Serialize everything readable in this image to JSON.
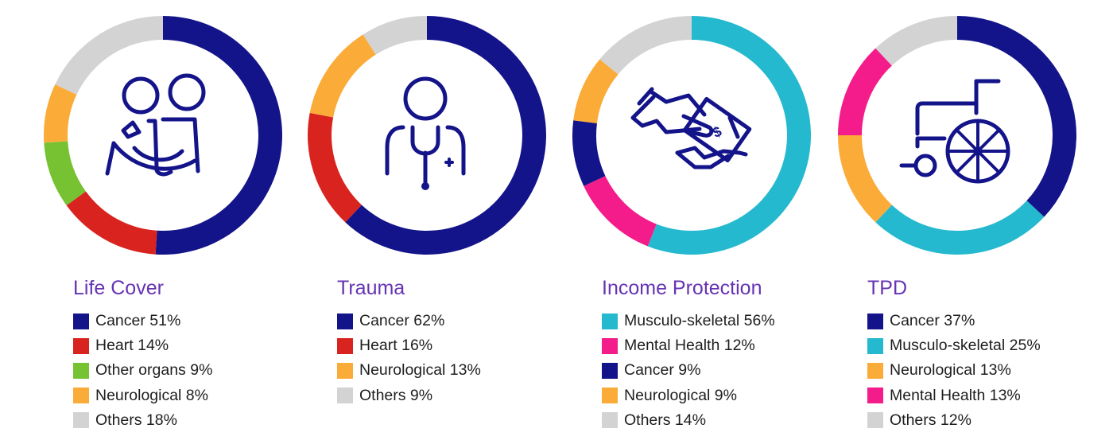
{
  "colors": {
    "navy": "#14148a",
    "red": "#d9231f",
    "green": "#76c232",
    "orange": "#fbab38",
    "gray": "#d3d3d3",
    "cyan": "#25b9cf",
    "magenta": "#f41c8a",
    "title": "#6633b3"
  },
  "panels": [
    {
      "title": "Life Cover",
      "icon": "two-people-hug-icon",
      "items": [
        {
          "label": "Cancer 51%",
          "name": "Cancer",
          "value": 51,
          "color": "#14148a"
        },
        {
          "label": "Heart 14%",
          "name": "Heart",
          "value": 14,
          "color": "#d9231f"
        },
        {
          "label": "Other organs 9%",
          "name": "Other organs",
          "value": 9,
          "color": "#76c232"
        },
        {
          "label": "Neurological 8%",
          "name": "Neurological",
          "value": 8,
          "color": "#fbab38"
        },
        {
          "label": "Others 18%",
          "name": "Others",
          "value": 18,
          "color": "#d3d3d3"
        }
      ]
    },
    {
      "title": "Trauma",
      "icon": "doctor-stethoscope-icon",
      "items": [
        {
          "label": "Cancer 62%",
          "name": "Cancer",
          "value": 62,
          "color": "#14148a"
        },
        {
          "label": "Heart 16%",
          "name": "Heart",
          "value": 16,
          "color": "#d9231f"
        },
        {
          "label": "Neurological 13%",
          "name": "Neurological",
          "value": 13,
          "color": "#fbab38"
        },
        {
          "label": "Others 9%",
          "name": "Others",
          "value": 9,
          "color": "#d3d3d3"
        }
      ]
    },
    {
      "title": "Income Protection",
      "icon": "hand-giving-money-icon",
      "items": [
        {
          "label": "Musculo-skeletal 56%",
          "name": "Musculo-skeletal",
          "value": 56,
          "color": "#25b9cf"
        },
        {
          "label": "Mental Health 12%",
          "name": "Mental Health",
          "value": 12,
          "color": "#f41c8a"
        },
        {
          "label": "Cancer 9%",
          "name": "Cancer",
          "value": 9,
          "color": "#14148a"
        },
        {
          "label": "Neurological 9%",
          "name": "Neurological",
          "value": 9,
          "color": "#fbab38"
        },
        {
          "label": "Others 14%",
          "name": "Others",
          "value": 14,
          "color": "#d3d3d3"
        }
      ]
    },
    {
      "title": "TPD",
      "icon": "wheelchair-icon",
      "items": [
        {
          "label": "Cancer 37%",
          "name": "Cancer",
          "value": 37,
          "color": "#14148a"
        },
        {
          "label": "Musculo-skeletal 25%",
          "name": "Musculo-skeletal",
          "value": 25,
          "color": "#25b9cf"
        },
        {
          "label": "Neurological 13%",
          "name": "Neurological",
          "value": 13,
          "color": "#fbab38"
        },
        {
          "label": "Mental Health 13%",
          "name": "Mental Health",
          "value": 13,
          "color": "#f41c8a"
        },
        {
          "label": "Others 12%",
          "name": "Others",
          "value": 12,
          "color": "#d3d3d3"
        }
      ]
    }
  ],
  "chart_data": [
    {
      "type": "pie",
      "variant": "donut",
      "title": "Life Cover",
      "categories": [
        "Cancer",
        "Heart",
        "Other organs",
        "Neurological",
        "Others"
      ],
      "values": [
        51,
        14,
        9,
        8,
        18
      ],
      "colors": [
        "#14148a",
        "#d9231f",
        "#76c232",
        "#fbab38",
        "#d3d3d3"
      ],
      "unit": "%",
      "legend_position": "bottom",
      "start_angle": "12 o'clock, clockwise"
    },
    {
      "type": "pie",
      "variant": "donut",
      "title": "Trauma",
      "categories": [
        "Cancer",
        "Heart",
        "Neurological",
        "Others"
      ],
      "values": [
        62,
        16,
        13,
        9
      ],
      "colors": [
        "#14148a",
        "#d9231f",
        "#fbab38",
        "#d3d3d3"
      ],
      "unit": "%",
      "legend_position": "bottom",
      "start_angle": "12 o'clock, clockwise"
    },
    {
      "type": "pie",
      "variant": "donut",
      "title": "Income Protection",
      "categories": [
        "Musculo-skeletal",
        "Mental Health",
        "Cancer",
        "Neurological",
        "Others"
      ],
      "values": [
        56,
        12,
        9,
        9,
        14
      ],
      "colors": [
        "#25b9cf",
        "#f41c8a",
        "#14148a",
        "#fbab38",
        "#d3d3d3"
      ],
      "unit": "%",
      "legend_position": "bottom",
      "start_angle": "12 o'clock, clockwise"
    },
    {
      "type": "pie",
      "variant": "donut",
      "title": "TPD",
      "categories": [
        "Cancer",
        "Musculo-skeletal",
        "Neurological",
        "Mental Health",
        "Others"
      ],
      "values": [
        37,
        25,
        13,
        13,
        12
      ],
      "colors": [
        "#14148a",
        "#25b9cf",
        "#fbab38",
        "#f41c8a",
        "#d3d3d3"
      ],
      "unit": "%",
      "legend_position": "bottom",
      "start_angle": "12 o'clock, clockwise"
    }
  ]
}
